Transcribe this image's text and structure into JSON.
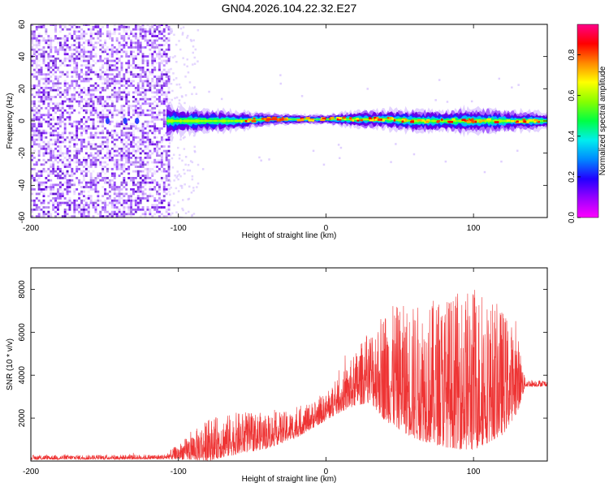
{
  "chart_data": [
    {
      "type": "heatmap",
      "title": "GN04.2026.104.22.32.E27",
      "xlabel": "Height of straight line (km)",
      "ylabel": "Frequency (Hz)",
      "xlim": [
        -200,
        150
      ],
      "ylim": [
        -60,
        60
      ],
      "xticks": [
        -200,
        -100,
        0,
        100
      ],
      "yticks": [
        -60,
        -40,
        -20,
        0,
        20,
        40,
        60
      ],
      "noise_region_x": [
        -200,
        -107
      ],
      "signal_band_start_x": -108,
      "band_center_hz": [
        {
          "x": -108,
          "y": 0
        },
        {
          "x": -100,
          "y": 0
        },
        {
          "x": -80,
          "y": 0
        },
        {
          "x": -60,
          "y": 0
        },
        {
          "x": -40,
          "y": 1
        },
        {
          "x": -20,
          "y": 1
        },
        {
          "x": 0,
          "y": 1
        },
        {
          "x": 20,
          "y": 1
        },
        {
          "x": 40,
          "y": 1
        },
        {
          "x": 60,
          "y": 0
        },
        {
          "x": 80,
          "y": 0
        },
        {
          "x": 100,
          "y": 0
        },
        {
          "x": 120,
          "y": 0
        },
        {
          "x": 140,
          "y": 0
        },
        {
          "x": 150,
          "y": 0
        }
      ],
      "band_halfwidth_hz": [
        {
          "x": -108,
          "y": 9
        },
        {
          "x": -80,
          "y": 7
        },
        {
          "x": -60,
          "y": 6
        },
        {
          "x": -40,
          "y": 4
        },
        {
          "x": -20,
          "y": 3
        },
        {
          "x": 0,
          "y": 3
        },
        {
          "x": 20,
          "y": 5
        },
        {
          "x": 40,
          "y": 6
        },
        {
          "x": 60,
          "y": 7
        },
        {
          "x": 80,
          "y": 7
        },
        {
          "x": 100,
          "y": 8
        },
        {
          "x": 120,
          "y": 7
        },
        {
          "x": 150,
          "y": 5
        }
      ]
    },
    {
      "type": "line",
      "xlabel": "Height of straight line (km)",
      "ylabel": "SNR (10 * v/v)",
      "xlim": [
        -200,
        150
      ],
      "ylim": [
        0,
        9000
      ],
      "xticks": [
        -200,
        -100,
        0,
        100
      ],
      "yticks": [
        2000,
        4000,
        6000,
        8000
      ],
      "series_color": "#ee3333",
      "envelope": [
        {
          "x": -200,
          "base": 120,
          "amp": 150
        },
        {
          "x": -110,
          "base": 140,
          "amp": 160
        },
        {
          "x": -100,
          "base": 250,
          "amp": 500
        },
        {
          "x": -80,
          "base": 500,
          "amp": 1400
        },
        {
          "x": -60,
          "base": 800,
          "amp": 1400
        },
        {
          "x": -40,
          "base": 1000,
          "amp": 1200
        },
        {
          "x": -20,
          "base": 1400,
          "amp": 900
        },
        {
          "x": 0,
          "base": 2200,
          "amp": 900
        },
        {
          "x": 10,
          "base": 2700,
          "amp": 1200
        },
        {
          "x": 20,
          "base": 3200,
          "amp": 1800
        },
        {
          "x": 30,
          "base": 3600,
          "amp": 2500
        },
        {
          "x": 40,
          "base": 3200,
          "amp": 3800
        },
        {
          "x": 60,
          "base": 2600,
          "amp": 4500
        },
        {
          "x": 80,
          "base": 2400,
          "amp": 5000
        },
        {
          "x": 100,
          "base": 2400,
          "amp": 5500
        },
        {
          "x": 120,
          "base": 2700,
          "amp": 4200
        },
        {
          "x": 130,
          "base": 3200,
          "amp": 2600
        },
        {
          "x": 135,
          "base": 3550,
          "amp": 250
        },
        {
          "x": 150,
          "base": 3550,
          "amp": 200
        }
      ]
    }
  ],
  "colorbar": {
    "label": "Normalized spectral amplitude",
    "range": [
      0,
      0.95
    ],
    "ticks": [
      0.0,
      0.2,
      0.4,
      0.6,
      0.8
    ],
    "tick_labels": [
      "0.0",
      "0.2",
      "0.4",
      "0.6",
      "0.8"
    ],
    "stops": [
      "#ff00ff",
      "#9900ff",
      "#2200ff",
      "#0088ff",
      "#00eeee",
      "#00ff44",
      "#88ff00",
      "#ffff00",
      "#ff8800",
      "#ff0000",
      "#ff0088"
    ]
  },
  "colors": {
    "axis": "#000000",
    "noise_purple": "#7a1af0",
    "band_core": "#00ff66"
  }
}
